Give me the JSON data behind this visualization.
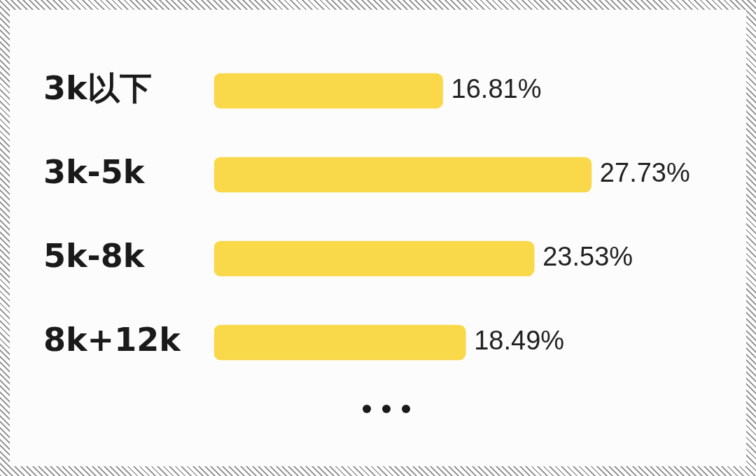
{
  "chart_data": {
    "type": "bar",
    "orientation": "horizontal",
    "categories": [
      "3k以下",
      "3k-5k",
      "5k-8k",
      "8k+12k"
    ],
    "values": [
      16.81,
      27.73,
      23.53,
      18.49
    ],
    "value_labels": [
      "16.81%",
      "27.73%",
      "23.53%",
      "18.49%"
    ],
    "color": "#f9d84a"
  }
}
